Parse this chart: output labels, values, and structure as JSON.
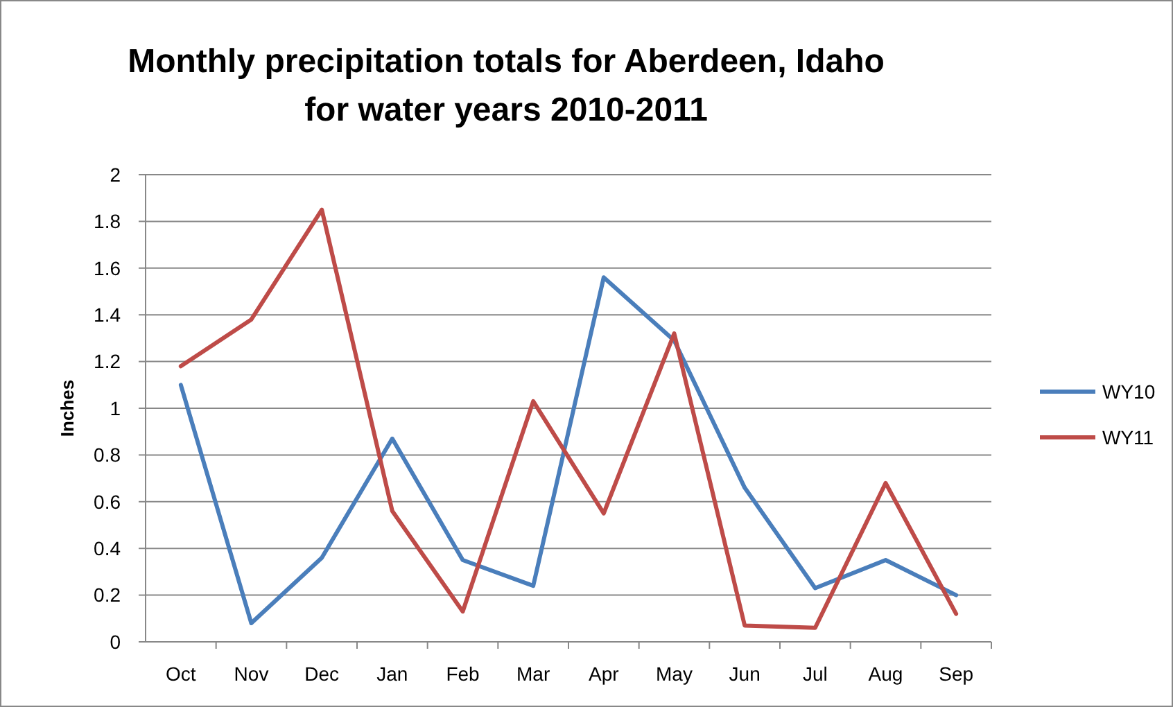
{
  "chart_data": {
    "type": "line",
    "title": "Monthly precipitation totals for Aberdeen, Idaho\nfor water years 2010-2011",
    "ylabel": "Inches",
    "categories": [
      "Oct",
      "Nov",
      "Dec",
      "Jan",
      "Feb",
      "Mar",
      "Apr",
      "May",
      "Jun",
      "Jul",
      "Aug",
      "Sep"
    ],
    "series": [
      {
        "name": "WY10",
        "color": "#4a7ebb",
        "values": [
          1.1,
          0.08,
          0.36,
          0.87,
          0.35,
          0.24,
          1.56,
          1.29,
          0.66,
          0.23,
          0.35,
          0.2
        ]
      },
      {
        "name": "WY11",
        "color": "#be4b48",
        "values": [
          1.18,
          1.38,
          1.85,
          0.56,
          0.13,
          1.03,
          0.55,
          1.32,
          0.07,
          0.06,
          0.68,
          0.12
        ]
      }
    ],
    "ylim": [
      0,
      2
    ],
    "yticks": [
      0,
      0.2,
      0.4,
      0.6,
      0.8,
      1,
      1.2,
      1.4,
      1.6,
      1.8,
      2
    ],
    "grid": "y",
    "legend": "right",
    "marker": "none",
    "line_style": "solid"
  }
}
